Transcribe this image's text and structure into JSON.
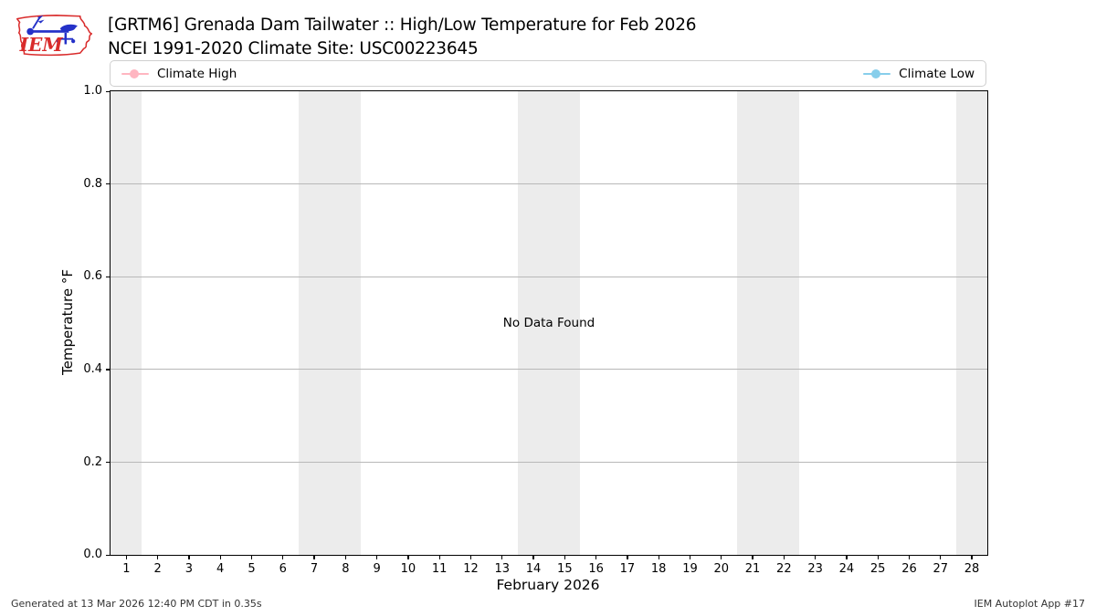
{
  "header": {
    "title": "[GRTM6] Grenada Dam Tailwater :: High/Low Temperature for Feb 2026",
    "subtitle": "NCEI 1991-2020 Climate Site: USC00223645",
    "logo_text": "IEM"
  },
  "legend": {
    "entries": [
      {
        "label": "Climate High",
        "color": "#ffb6c1"
      },
      {
        "label": "Climate Low",
        "color": "#87ceeb"
      }
    ]
  },
  "chart_data": {
    "type": "line",
    "title": "[GRTM6] Grenada Dam Tailwater :: High/Low Temperature for Feb 2026",
    "subtitle": "NCEI 1991-2020 Climate Site: USC00223645",
    "xlabel": "February 2026",
    "ylabel": "Temperature °F",
    "x": [
      1,
      2,
      3,
      4,
      5,
      6,
      7,
      8,
      9,
      10,
      11,
      12,
      13,
      14,
      15,
      16,
      17,
      18,
      19,
      20,
      21,
      22,
      23,
      24,
      25,
      26,
      27,
      28
    ],
    "xticklabels": [
      "1",
      "2",
      "3",
      "4",
      "5",
      "6",
      "7",
      "8",
      "9",
      "10",
      "11",
      "12",
      "13",
      "14",
      "15",
      "16",
      "17",
      "18",
      "19",
      "20",
      "21",
      "22",
      "23",
      "24",
      "25",
      "26",
      "27",
      "28"
    ],
    "xlim": [
      0.5,
      28.5
    ],
    "ylim": [
      0.0,
      1.0
    ],
    "yticks": [
      0.0,
      0.2,
      0.4,
      0.6,
      0.8,
      1.0
    ],
    "yticklabels": [
      "0.0",
      "0.2",
      "0.4",
      "0.6",
      "0.8",
      "1.0"
    ],
    "grid": "horizontal gridlines on",
    "legend_position": "top strip, entries split left and right",
    "series": [
      {
        "name": "Climate High",
        "color": "#ffb6c1",
        "values": []
      },
      {
        "name": "Climate Low",
        "color": "#87ceeb",
        "values": []
      }
    ],
    "no_data_text": "No Data Found",
    "weekend_bands_x": [
      [
        0.5,
        1.5
      ],
      [
        6.5,
        8.5
      ],
      [
        13.5,
        15.5
      ],
      [
        20.5,
        22.5
      ],
      [
        27.5,
        28.5
      ]
    ],
    "band_color": "#ececec"
  },
  "footer": {
    "left": "Generated at 13 Mar 2026 12:40 PM CDT in 0.35s",
    "right": "IEM Autoplot App #17"
  }
}
